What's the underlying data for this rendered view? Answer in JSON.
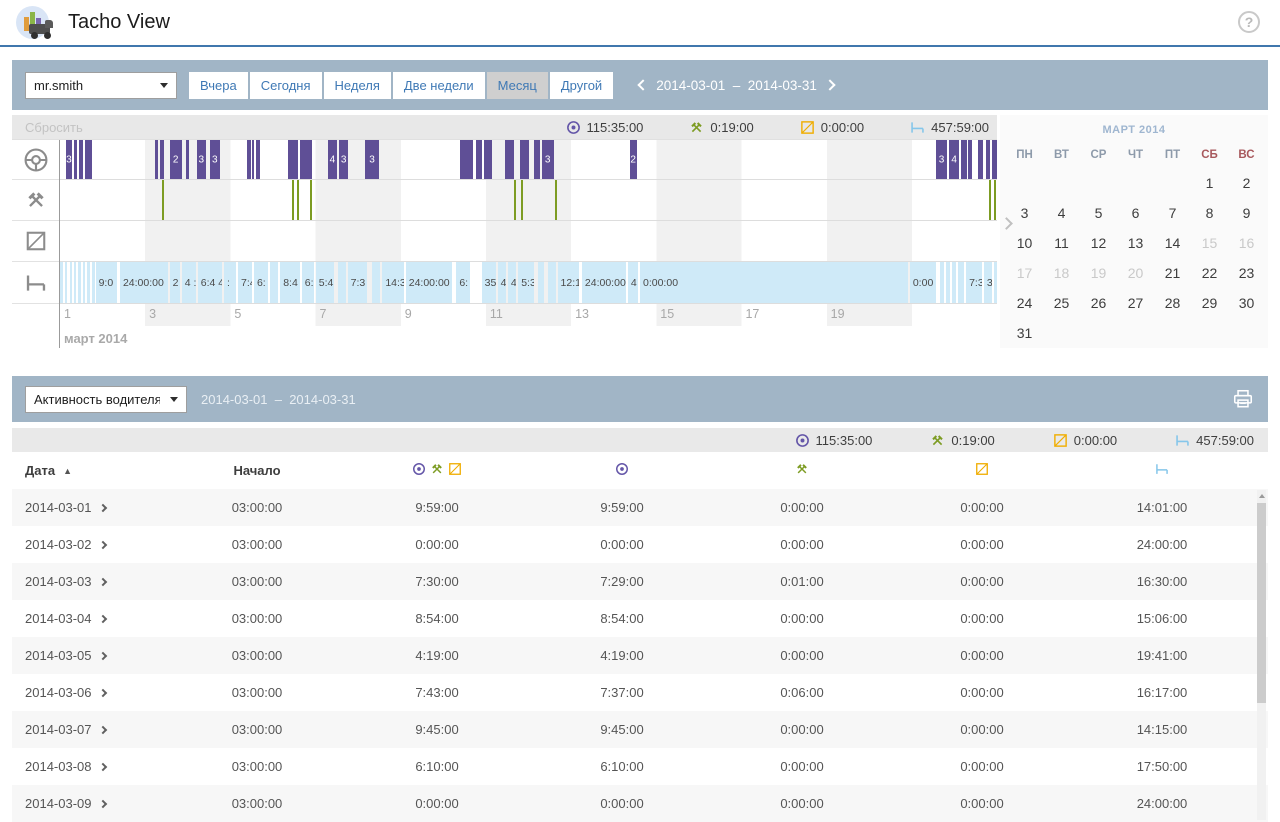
{
  "header": {
    "title": "Tacho View",
    "help_glyph": "?"
  },
  "toolbar": {
    "driver": "mr.smith",
    "range_buttons": [
      "Вчера",
      "Сегодня",
      "Неделя",
      "Две недели",
      "Месяц",
      "Другой"
    ],
    "active_button": "Месяц",
    "date_from": "2014-03-01",
    "date_sep": "–",
    "date_to": "2014-03-31"
  },
  "stats": [
    {
      "icon": "driving",
      "value": "115:35:00"
    },
    {
      "icon": "work",
      "value": "0:19:00"
    },
    {
      "icon": "availability",
      "value": "0:00:00"
    },
    {
      "icon": "rest",
      "value": "457:59:00"
    }
  ],
  "colors": {
    "band": "#a1b5c6",
    "driving": "#5f4f96",
    "driving_icon": "#6456a8",
    "work": "#7d9c23",
    "availability": "#f0ad00",
    "rest_fill": "#cfeaf8",
    "rest_icon": "#85c6ea",
    "gantt_icon": "#8c8c8c",
    "header_border": "#4077ad"
  },
  "timeline": {
    "reset_label": "Сбросить",
    "month_label": "март 2014",
    "row_icons": [
      "steering",
      "work",
      "availability",
      "rest"
    ],
    "axis_days": [
      1,
      3,
      5,
      7,
      9,
      11,
      13,
      15,
      17,
      19
    ],
    "days_visible": 22,
    "driving": [
      {
        "x": 0.6,
        "w": 0.7,
        "label": "3"
      },
      {
        "x": 1.5,
        "w": 0.35
      },
      {
        "x": 2.0,
        "w": 0.45
      },
      {
        "x": 2.7,
        "w": 0.75
      },
      {
        "x": 10.1,
        "w": 0.35
      },
      {
        "x": 10.7,
        "w": 0.35
      },
      {
        "x": 11.7,
        "w": 1.3,
        "label": "2"
      },
      {
        "x": 13.4,
        "w": 0.35
      },
      {
        "x": 14.6,
        "w": 0.95,
        "label": "3"
      },
      {
        "x": 16.0,
        "w": 1.05,
        "label": "3"
      },
      {
        "x": 20.0,
        "w": 0.35
      },
      {
        "x": 20.5,
        "w": 0.25
      },
      {
        "x": 20.9,
        "w": 0.45
      },
      {
        "x": 24.3,
        "w": 1.05
      },
      {
        "x": 25.6,
        "w": 1.3
      },
      {
        "x": 28.6,
        "w": 0.95,
        "label": "4"
      },
      {
        "x": 29.8,
        "w": 0.95,
        "label": "3"
      },
      {
        "x": 32.6,
        "w": 1.4,
        "label": "3"
      },
      {
        "x": 42.7,
        "w": 1.4
      },
      {
        "x": 44.4,
        "w": 0.65
      },
      {
        "x": 45.3,
        "w": 0.85
      },
      {
        "x": 47.5,
        "w": 0.95
      },
      {
        "x": 49.1,
        "w": 0.95
      },
      {
        "x": 50.6,
        "w": 0.65
      },
      {
        "x": 51.4,
        "w": 1.3,
        "label": "3"
      },
      {
        "x": 60.8,
        "w": 0.75,
        "label": "2"
      },
      {
        "x": 93.5,
        "w": 1.15,
        "label": "3"
      },
      {
        "x": 94.9,
        "w": 1.05,
        "label": "4"
      },
      {
        "x": 96.2,
        "w": 0.55
      },
      {
        "x": 96.9,
        "w": 0.45
      },
      {
        "x": 98.0,
        "w": 0.55
      },
      {
        "x": 98.8,
        "w": 0.45
      },
      {
        "x": 99.5,
        "w": 0.5
      }
    ],
    "work": [
      {
        "x": 10.9
      },
      {
        "x": 24.8
      },
      {
        "x": 25.3
      },
      {
        "x": 26.7
      },
      {
        "x": 48.5
      },
      {
        "x": 49.2
      },
      {
        "x": 52.8
      },
      {
        "x": 99.1
      },
      {
        "x": 99.7
      }
    ],
    "availability": [],
    "rest": [
      {
        "x": 0,
        "w": 0.3
      },
      {
        "x": 0.5,
        "w": 0.3
      },
      {
        "x": 1.1,
        "w": 0.2
      },
      {
        "x": 1.5,
        "w": 0.2
      },
      {
        "x": 1.9,
        "w": 0.3
      },
      {
        "x": 2.5,
        "w": 0.2
      },
      {
        "x": 2.9,
        "w": 0.3
      },
      {
        "x": 3.4,
        "w": 0.3
      },
      {
        "x": 3.8,
        "w": 2.3,
        "label": "9:0"
      },
      {
        "x": 6.4,
        "w": 5.1,
        "label": "24:00:00"
      },
      {
        "x": 11.7,
        "w": 1.1,
        "label": "2"
      },
      {
        "x": 13.0,
        "w": 1.5,
        "label": "4 :"
      },
      {
        "x": 14.7,
        "w": 2.6,
        "label": "6:4 4"
      },
      {
        "x": 17.5,
        "w": 1.3,
        "label": ":"
      },
      {
        "x": 19.0,
        "w": 1.5,
        "label": "7:4"
      },
      {
        "x": 20.7,
        "w": 1.5,
        "label": "6:"
      },
      {
        "x": 22.4,
        "w": 0.85
      },
      {
        "x": 23.5,
        "w": 2.1,
        "label": "8:4"
      },
      {
        "x": 25.8,
        "w": 1.3,
        "label": "6:"
      },
      {
        "x": 27.3,
        "w": 1.9,
        "label": "5:4"
      },
      {
        "x": 29.7,
        "w": 0.85
      },
      {
        "x": 30.7,
        "w": 2.1,
        "label": "7:3"
      },
      {
        "x": 33.3,
        "w": 0.85
      },
      {
        "x": 34.4,
        "w": 2.3,
        "label": "14:39"
      },
      {
        "x": 36.9,
        "w": 4.9,
        "label": "24:00:00"
      },
      {
        "x": 42.3,
        "w": 1.5,
        "label": "6:"
      },
      {
        "x": 45.0,
        "w": 1.5,
        "label": "35:"
      },
      {
        "x": 46.7,
        "w": 0.85,
        "label": "4"
      },
      {
        "x": 47.8,
        "w": 0.85,
        "label": "4"
      },
      {
        "x": 48.9,
        "w": 1.7,
        "label": "5:3"
      },
      {
        "x": 51.0,
        "w": 0.65
      },
      {
        "x": 52.1,
        "w": 0.85
      },
      {
        "x": 53.1,
        "w": 2.3,
        "label": "12:1"
      },
      {
        "x": 55.7,
        "w": 4.7,
        "label": "24:00:00"
      },
      {
        "x": 60.6,
        "w": 1.05,
        "label": "4"
      },
      {
        "x": 61.9,
        "w": 28.6,
        "label": "0:00:00"
      },
      {
        "x": 90.7,
        "w": 2.8,
        "label": "0:00"
      },
      {
        "x": 93.9,
        "w": 0.4
      },
      {
        "x": 94.6,
        "w": 0.4
      },
      {
        "x": 95.2,
        "w": 0.4
      },
      {
        "x": 95.8,
        "w": 0.65
      },
      {
        "x": 96.7,
        "w": 1.7,
        "label": "7:3"
      },
      {
        "x": 98.6,
        "w": 0.85,
        "label": "3"
      },
      {
        "x": 99.7,
        "w": 0.3
      }
    ]
  },
  "calendar": {
    "title": "МАРТ 2014",
    "weekdays": [
      "ПН",
      "ВТ",
      "СР",
      "ЧТ",
      "ПТ",
      "СБ",
      "ВС"
    ],
    "weeks": [
      [
        null,
        null,
        null,
        null,
        null,
        1,
        2
      ],
      [
        3,
        4,
        5,
        6,
        7,
        8,
        9
      ],
      [
        10,
        11,
        12,
        13,
        14,
        15,
        16
      ],
      [
        17,
        18,
        19,
        20,
        21,
        22,
        23
      ],
      [
        24,
        25,
        26,
        27,
        28,
        29,
        30
      ],
      [
        31,
        null,
        null,
        null,
        null,
        null,
        null
      ]
    ],
    "disabled_days": [
      15,
      16,
      17,
      18,
      19,
      20
    ]
  },
  "report": {
    "type": "Активность водителя",
    "date_from": "2014-03-01",
    "date_sep": "–",
    "date_to": "2014-03-31",
    "sort_glyph": "▲",
    "columns": [
      {
        "kind": "text",
        "label": "Дата",
        "sortable": true
      },
      {
        "kind": "text",
        "label": "Начало"
      },
      {
        "kind": "icons",
        "icons": [
          "driving",
          "work",
          "availability"
        ]
      },
      {
        "kind": "icons",
        "icons": [
          "driving"
        ]
      },
      {
        "kind": "icons",
        "icons": [
          "work"
        ]
      },
      {
        "kind": "icons",
        "icons": [
          "availability"
        ]
      },
      {
        "kind": "icons",
        "icons": [
          "rest"
        ]
      }
    ],
    "rows": [
      {
        "date": "2014-03-01",
        "values": [
          "03:00:00",
          "9:59:00",
          "9:59:00",
          "0:00:00",
          "0:00:00",
          "14:01:00"
        ]
      },
      {
        "date": "2014-03-02",
        "values": [
          "03:00:00",
          "0:00:00",
          "0:00:00",
          "0:00:00",
          "0:00:00",
          "24:00:00"
        ]
      },
      {
        "date": "2014-03-03",
        "values": [
          "03:00:00",
          "7:30:00",
          "7:29:00",
          "0:01:00",
          "0:00:00",
          "16:30:00"
        ]
      },
      {
        "date": "2014-03-04",
        "values": [
          "03:00:00",
          "8:54:00",
          "8:54:00",
          "0:00:00",
          "0:00:00",
          "15:06:00"
        ]
      },
      {
        "date": "2014-03-05",
        "values": [
          "03:00:00",
          "4:19:00",
          "4:19:00",
          "0:00:00",
          "0:00:00",
          "19:41:00"
        ]
      },
      {
        "date": "2014-03-06",
        "values": [
          "03:00:00",
          "7:43:00",
          "7:37:00",
          "0:06:00",
          "0:00:00",
          "16:17:00"
        ]
      },
      {
        "date": "2014-03-07",
        "values": [
          "03:00:00",
          "9:45:00",
          "9:45:00",
          "0:00:00",
          "0:00:00",
          "14:15:00"
        ]
      },
      {
        "date": "2014-03-08",
        "values": [
          "03:00:00",
          "6:10:00",
          "6:10:00",
          "0:00:00",
          "0:00:00",
          "17:50:00"
        ]
      },
      {
        "date": "2014-03-09",
        "values": [
          "03:00:00",
          "0:00:00",
          "0:00:00",
          "0:00:00",
          "0:00:00",
          "24:00:00"
        ]
      }
    ]
  }
}
